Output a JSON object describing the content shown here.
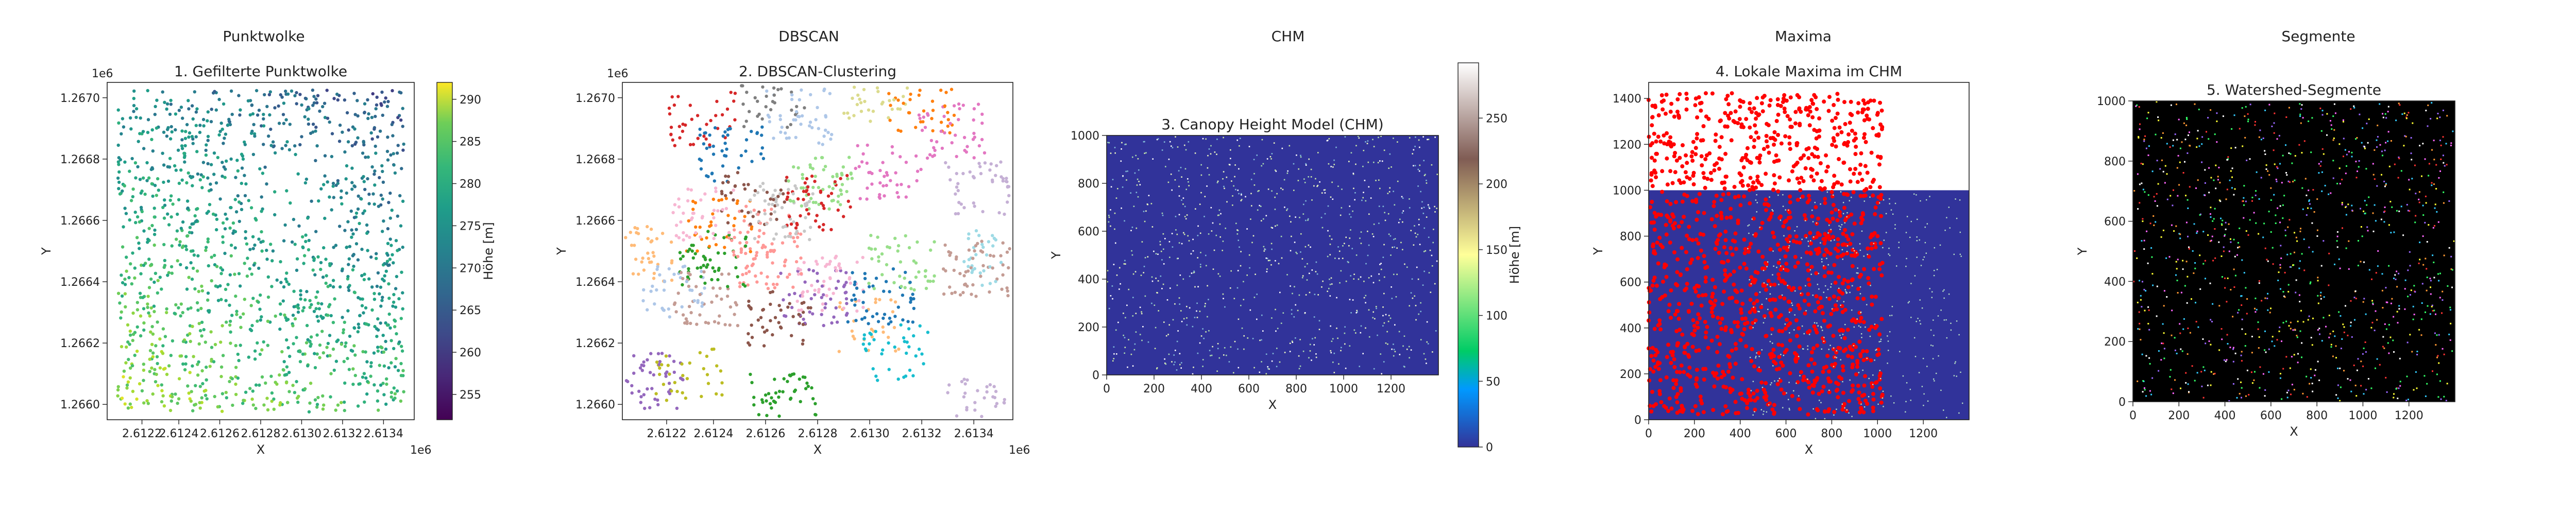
{
  "figure": {
    "columns": [
      "Punktwolke",
      "DBSCAN",
      "CHM",
      "Maxima",
      "Segmente"
    ]
  },
  "chart_data": [
    {
      "type": "scatter",
      "panel": "Punktwolke",
      "title": "1. Gefilterte Punktwolke",
      "xlabel": "X",
      "ylabel": "Y",
      "x_offset_label": "1e6",
      "y_offset_label": "1e6",
      "xlim": [
        2.61205,
        2.61355
      ],
      "ylim": [
        1.26595,
        1.26705
      ],
      "xticks": [
        2.61222,
        2.6124,
        2.6126,
        2.6128,
        2.613,
        2.6132,
        2.6134
      ],
      "xtick_labels": [
        "2.6122",
        "2.6124",
        "2.6126",
        "2.6128",
        "2.6130",
        "2.6132",
        "2.6134"
      ],
      "yticks": [
        1.266,
        1.2662,
        1.2664,
        1.2666,
        1.2668,
        1.267
      ],
      "ytick_labels": [
        "1.2660",
        "1.2662",
        "1.2664",
        "1.2666",
        "1.2668",
        "1.2670"
      ],
      "colorbar": {
        "label": "Höhe [m]",
        "range": [
          252,
          292
        ],
        "ticks": [
          255,
          260,
          265,
          270,
          275,
          280,
          285,
          290
        ],
        "colormap": "viridis"
      }
    },
    {
      "type": "scatter",
      "panel": "DBSCAN",
      "title": "2. DBSCAN-Clustering",
      "xlabel": "X",
      "ylabel": "Y",
      "x_offset_label": "1e6",
      "y_offset_label": "1e6",
      "xlim": [
        2.61205,
        2.61355
      ],
      "ylim": [
        1.26595,
        1.26705
      ],
      "xticks": [
        2.61222,
        2.6124,
        2.6126,
        2.6128,
        2.613,
        2.6132,
        2.6134
      ],
      "xtick_labels": [
        "2.6122",
        "2.6124",
        "2.6126",
        "2.6128",
        "2.6130",
        "2.6132",
        "2.6134"
      ],
      "yticks": [
        1.266,
        1.2662,
        1.2664,
        1.2666,
        1.2668,
        1.267
      ],
      "ytick_labels": [
        "1.2660",
        "1.2662",
        "1.2664",
        "1.2666",
        "1.2668",
        "1.2670"
      ],
      "cluster_colors": [
        "#1f77b4",
        "#aec7e8",
        "#ff7f0e",
        "#ffbb78",
        "#2ca02c",
        "#98df8a",
        "#d62728",
        "#ff9896",
        "#9467bd",
        "#c5b0d5",
        "#8c564b",
        "#c49c94",
        "#e377c2",
        "#f7b6d2",
        "#7f7f7f",
        "#c7c7c7",
        "#bcbd22",
        "#dbdb8d",
        "#17becf",
        "#9edae5"
      ]
    },
    {
      "type": "heatmap",
      "panel": "CHM",
      "title": "3. Canopy Height Model (CHM)",
      "xlabel": "X",
      "ylabel": "Y",
      "xlim": [
        0,
        1400
      ],
      "ylim": [
        0,
        1000
      ],
      "xticks": [
        0,
        200,
        400,
        600,
        800,
        1000,
        1200
      ],
      "yticks": [
        0,
        200,
        400,
        600,
        800,
        1000
      ],
      "background_color": "#31339a",
      "colorbar": {
        "label": "Höhe [m]",
        "range": [
          0,
          292
        ],
        "ticks": [
          0,
          50,
          100,
          150,
          200,
          250
        ],
        "colormap": "terrain"
      }
    },
    {
      "type": "heatmap",
      "panel": "Maxima",
      "title": "4. Lokale Maxima im CHM",
      "xlabel": "X",
      "ylabel": "Y",
      "xlim": [
        0,
        1400
      ],
      "ylim": [
        0,
        1470
      ],
      "xticks": [
        0,
        200,
        400,
        600,
        800,
        1000,
        1200
      ],
      "yticks": [
        0,
        200,
        400,
        600,
        800,
        1000,
        1200,
        1400
      ],
      "background_color": "#31339a",
      "marker_color": "#ff0000"
    },
    {
      "type": "heatmap",
      "panel": "Segmente",
      "title": "5. Watershed-Segmente",
      "xlabel": "X",
      "ylabel": "Y",
      "xlim": [
        0,
        1400
      ],
      "ylim": [
        0,
        1000
      ],
      "xticks": [
        0,
        200,
        400,
        600,
        800,
        1000,
        1200
      ],
      "yticks": [
        0,
        200,
        400,
        600,
        800,
        1000
      ],
      "background_color": "#000000"
    }
  ]
}
